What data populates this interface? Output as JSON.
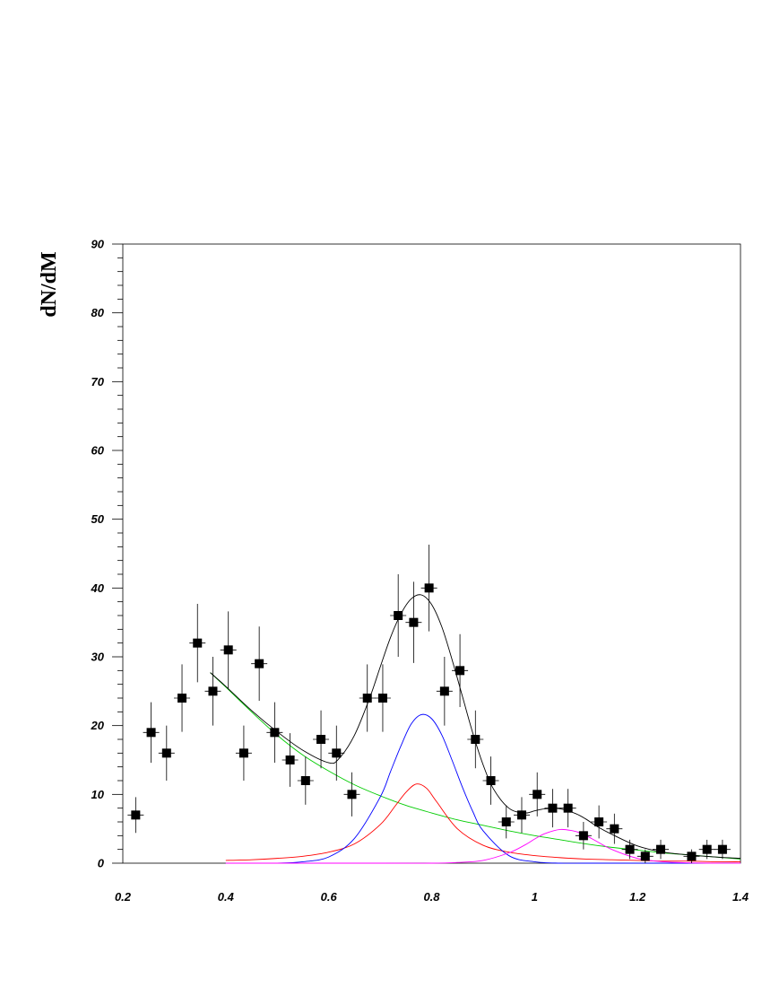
{
  "chart_data": {
    "type": "scatter",
    "title": "",
    "xlabel": "",
    "ylabel": "dN/dM",
    "xlim": [
      0.2,
      1.4
    ],
    "ylim": [
      0,
      90
    ],
    "x_ticks": [
      "0.2",
      "0.4",
      "0.6",
      "0.8",
      "1",
      "1.2",
      "1.4"
    ],
    "y_ticks": [
      "0",
      "10",
      "20",
      "30",
      "40",
      "50",
      "60",
      "70",
      "80",
      "90"
    ],
    "grid": false,
    "legend": "none",
    "series": [
      {
        "kind": "points_with_errors",
        "marker": "square",
        "color": "#000000",
        "points": [
          {
            "x": 0.225,
            "y": 7,
            "err": 2.6
          },
          {
            "x": 0.255,
            "y": 19,
            "err": 4.4
          },
          {
            "x": 0.285,
            "y": 16,
            "err": 4.0
          },
          {
            "x": 0.315,
            "y": 24,
            "err": 4.9
          },
          {
            "x": 0.345,
            "y": 32,
            "err": 5.7
          },
          {
            "x": 0.375,
            "y": 25,
            "err": 5.0
          },
          {
            "x": 0.405,
            "y": 31,
            "err": 5.6
          },
          {
            "x": 0.435,
            "y": 16,
            "err": 4.0
          },
          {
            "x": 0.465,
            "y": 29,
            "err": 5.4
          },
          {
            "x": 0.495,
            "y": 19,
            "err": 4.4
          },
          {
            "x": 0.525,
            "y": 15,
            "err": 3.9
          },
          {
            "x": 0.555,
            "y": 12,
            "err": 3.5
          },
          {
            "x": 0.585,
            "y": 18,
            "err": 4.2
          },
          {
            "x": 0.615,
            "y": 16,
            "err": 4.0
          },
          {
            "x": 0.645,
            "y": 10,
            "err": 3.2
          },
          {
            "x": 0.675,
            "y": 24,
            "err": 4.9
          },
          {
            "x": 0.705,
            "y": 24,
            "err": 4.9
          },
          {
            "x": 0.735,
            "y": 36,
            "err": 6.0
          },
          {
            "x": 0.765,
            "y": 35,
            "err": 5.9
          },
          {
            "x": 0.795,
            "y": 40,
            "err": 6.3
          },
          {
            "x": 0.825,
            "y": 25,
            "err": 5.0
          },
          {
            "x": 0.855,
            "y": 28,
            "err": 5.3
          },
          {
            "x": 0.885,
            "y": 18,
            "err": 4.2
          },
          {
            "x": 0.915,
            "y": 12,
            "err": 3.5
          },
          {
            "x": 0.945,
            "y": 6,
            "err": 2.4
          },
          {
            "x": 0.975,
            "y": 7,
            "err": 2.6
          },
          {
            "x": 1.005,
            "y": 10,
            "err": 3.2
          },
          {
            "x": 1.035,
            "y": 8,
            "err": 2.8
          },
          {
            "x": 1.065,
            "y": 8,
            "err": 2.8
          },
          {
            "x": 1.095,
            "y": 4,
            "err": 2.0
          },
          {
            "x": 1.125,
            "y": 6,
            "err": 2.4
          },
          {
            "x": 1.155,
            "y": 5,
            "err": 2.2
          },
          {
            "x": 1.185,
            "y": 2,
            "err": 1.4
          },
          {
            "x": 1.215,
            "y": 1,
            "err": 1.0
          },
          {
            "x": 1.245,
            "y": 2,
            "err": 1.4
          },
          {
            "x": 1.305,
            "y": 1,
            "err": 1.0
          },
          {
            "x": 1.335,
            "y": 2,
            "err": 1.4
          },
          {
            "x": 1.365,
            "y": 2,
            "err": 1.4
          }
        ]
      },
      {
        "kind": "curve",
        "color": "#00cc00",
        "x": [
          0.37,
          0.4,
          0.45,
          0.5,
          0.55,
          0.6,
          0.65,
          0.7,
          0.75,
          0.8,
          0.85,
          0.9,
          0.95,
          1.0,
          1.05,
          1.1,
          1.15,
          1.2,
          1.25,
          1.3,
          1.35,
          1.4
        ],
        "y": [
          27.7,
          25.6,
          22.0,
          18.6,
          15.7,
          13.4,
          11.4,
          9.8,
          8.4,
          7.3,
          6.3,
          5.5,
          4.7,
          4.0,
          3.4,
          2.8,
          2.3,
          1.9,
          1.5,
          1.2,
          0.9,
          0.6
        ]
      },
      {
        "kind": "curve",
        "color": "#ff0000",
        "x": [
          0.4,
          0.45,
          0.5,
          0.55,
          0.6,
          0.65,
          0.7,
          0.73,
          0.75,
          0.77,
          0.79,
          0.81,
          0.85,
          0.9,
          0.95,
          1.0,
          1.05,
          1.1,
          1.15,
          1.2,
          1.25,
          1.3,
          1.35,
          1.4
        ],
        "y": [
          0.4,
          0.5,
          0.7,
          1.0,
          1.6,
          2.8,
          5.6,
          8.4,
          10.3,
          11.5,
          10.9,
          8.9,
          5.0,
          2.6,
          1.6,
          1.1,
          0.8,
          0.6,
          0.5,
          0.4,
          0.3,
          0.3,
          0.2,
          0.2
        ]
      },
      {
        "kind": "curve",
        "color": "#0000ff",
        "x": [
          0.4,
          0.5,
          0.55,
          0.6,
          0.65,
          0.7,
          0.72,
          0.74,
          0.76,
          0.78,
          0.8,
          0.82,
          0.84,
          0.86,
          0.88,
          0.9,
          0.95,
          1.0,
          1.05,
          1.1,
          1.2,
          1.3,
          1.4
        ],
        "y": [
          0.0,
          0.0,
          0.2,
          0.9,
          3.6,
          9.6,
          13.3,
          17.0,
          20.2,
          21.6,
          21.0,
          18.6,
          14.9,
          11.0,
          7.5,
          4.7,
          1.1,
          0.2,
          0.0,
          0.0,
          0.0,
          0.0,
          0.0
        ]
      },
      {
        "kind": "curve",
        "color": "#ff00ff",
        "x": [
          0.4,
          0.7,
          0.8,
          0.85,
          0.9,
          0.95,
          0.98,
          1.0,
          1.02,
          1.05,
          1.08,
          1.1,
          1.12,
          1.15,
          1.2,
          1.25,
          1.3,
          1.35,
          1.4
        ],
        "y": [
          0.0,
          0.0,
          0.0,
          0.1,
          0.4,
          1.5,
          2.6,
          3.5,
          4.3,
          4.9,
          4.6,
          4.0,
          3.2,
          2.0,
          0.7,
          0.2,
          0.05,
          0.0,
          0.0
        ]
      },
      {
        "kind": "curve",
        "color": "#000000",
        "x": [
          0.37,
          0.4,
          0.45,
          0.5,
          0.55,
          0.6,
          0.62,
          0.65,
          0.68,
          0.7,
          0.72,
          0.74,
          0.76,
          0.78,
          0.8,
          0.82,
          0.84,
          0.86,
          0.88,
          0.9,
          0.92,
          0.95,
          0.98,
          1.0,
          1.02,
          1.05,
          1.08,
          1.1,
          1.12,
          1.15,
          1.2,
          1.25,
          1.3,
          1.35,
          1.4
        ],
        "y": [
          27.7,
          25.7,
          22.2,
          19.1,
          16.4,
          14.6,
          15.2,
          18.6,
          24.1,
          28.5,
          32.8,
          36.2,
          38.4,
          39.0,
          37.6,
          34.3,
          29.5,
          24.2,
          18.9,
          14.3,
          10.8,
          8.0,
          7.3,
          7.6,
          7.9,
          7.9,
          7.2,
          6.4,
          5.4,
          4.2,
          2.5,
          1.6,
          1.2,
          0.9,
          0.7
        ]
      }
    ]
  }
}
